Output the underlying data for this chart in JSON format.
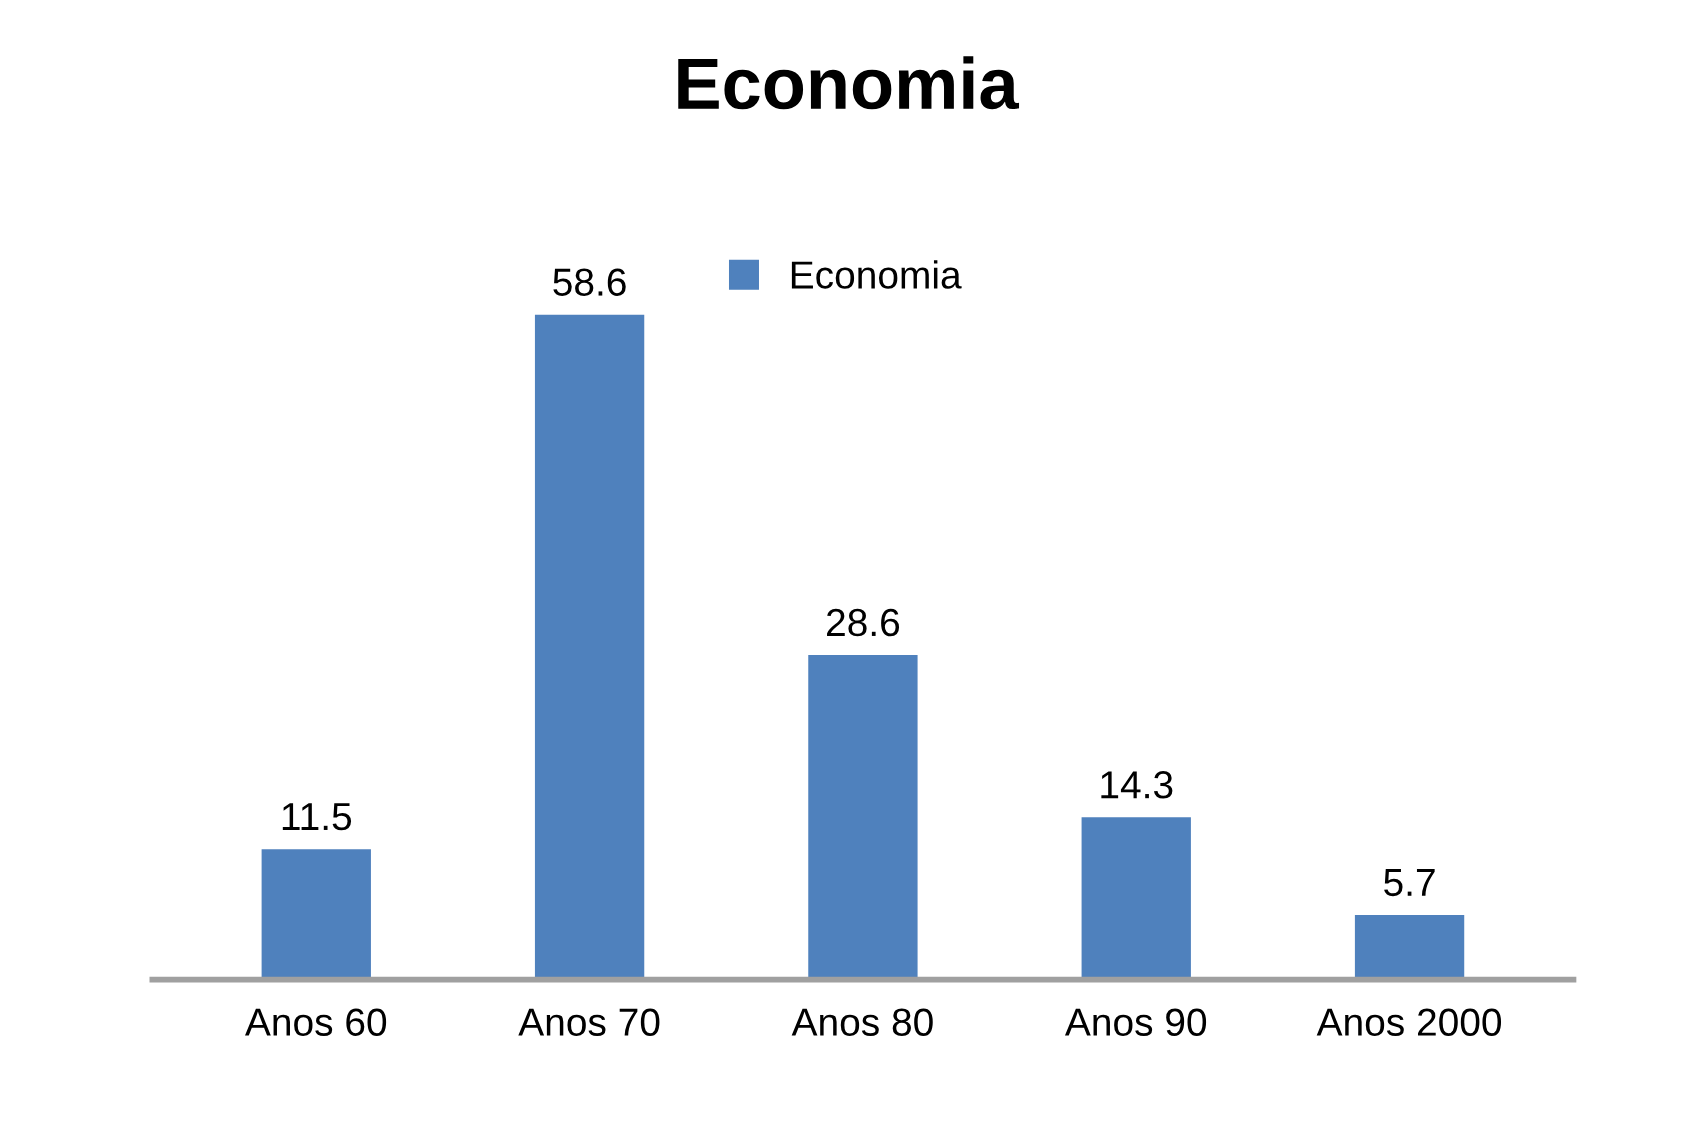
{
  "chart_data": {
    "type": "bar",
    "title": "Economia",
    "categories": [
      "Anos 60",
      "Anos 70",
      "Anos 80",
      "Anos 90",
      "Anos 2000"
    ],
    "series": [
      {
        "name": "Economia",
        "color": "#4f81bd",
        "values": [
          11.5,
          58.6,
          28.6,
          14.3,
          5.7
        ]
      }
    ],
    "data_labels": true,
    "legend": "top",
    "grid": false,
    "tick_labels": "x"
  }
}
